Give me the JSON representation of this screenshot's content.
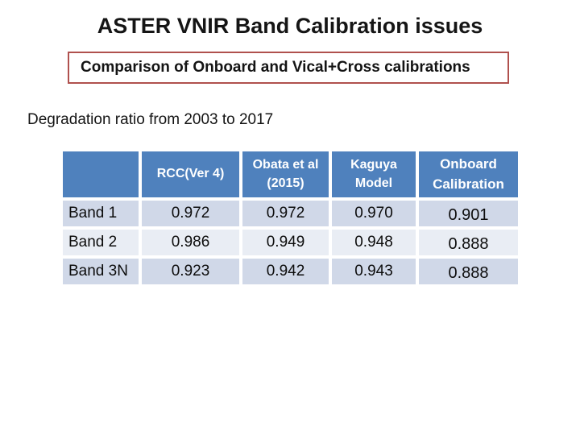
{
  "slide": {
    "title": "ASTER VNIR Band Calibration issues",
    "highlight_box_text": "Comparison of Onboard and Vical+Cross calibrations",
    "subtitle": "Degradation ratio from 2003 to 2017"
  },
  "colors": {
    "header_fill": "#4f81bd",
    "header_text": "#ffffff",
    "band_dark": "#d0d8e8",
    "band_light": "#e9edf4",
    "highlight_border": "#b0514e",
    "body_text": "#0d0d0d"
  },
  "chart_data": {
    "type": "table",
    "title": "Degradation ratio from 2003 to 2017",
    "headers": [
      "",
      "RCC(Ver 4)",
      "Obata et al (2015)",
      "Kaguya Model",
      "Onboard Calibration"
    ],
    "rows": [
      [
        "Band 1",
        "0.972",
        "0.972",
        "0.970",
        "0.901"
      ],
      [
        "Band 2",
        "0.986",
        "0.949",
        "0.948",
        "0.888"
      ],
      [
        "Band 3N",
        "0.923",
        "0.942",
        "0.943",
        "0.888"
      ]
    ]
  }
}
